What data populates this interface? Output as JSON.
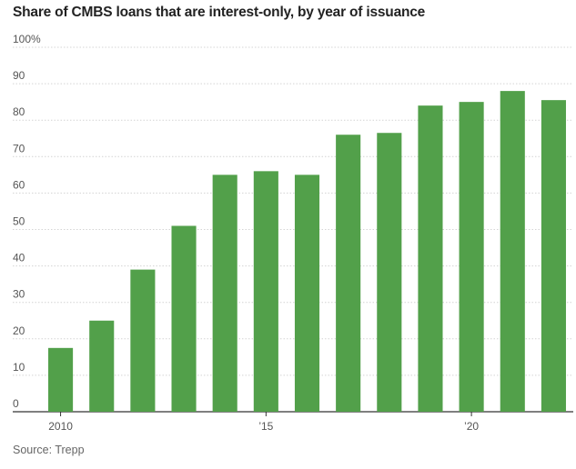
{
  "chart_data": {
    "type": "bar",
    "title": "Share of CMBS loans that are interest-only, by year of issuance",
    "source": "Source: Trepp",
    "categories": [
      "2010",
      "2011",
      "2012",
      "2013",
      "2014",
      "2015",
      "2016",
      "2017",
      "2018",
      "2019",
      "2020",
      "2021",
      "2022"
    ],
    "values": [
      17.5,
      25,
      39,
      51,
      65,
      66,
      65,
      76,
      76.5,
      84,
      85,
      88,
      85.5
    ],
    "y_ticks": [
      0,
      10,
      20,
      30,
      40,
      50,
      60,
      70,
      80,
      90,
      100
    ],
    "y_tick_labels": [
      "0",
      "10",
      "20",
      "30",
      "40",
      "50",
      "60",
      "70",
      "80",
      "90",
      "100%"
    ],
    "x_tick_labels": [
      {
        "category": "2010",
        "label": "2010"
      },
      {
        "category": "2015",
        "label": "’15"
      },
      {
        "category": "2020",
        "label": "’20"
      }
    ],
    "ylim": [
      0,
      100
    ],
    "xlabel": "",
    "ylabel": "",
    "bar_color": "#52a04a",
    "grid": true
  }
}
